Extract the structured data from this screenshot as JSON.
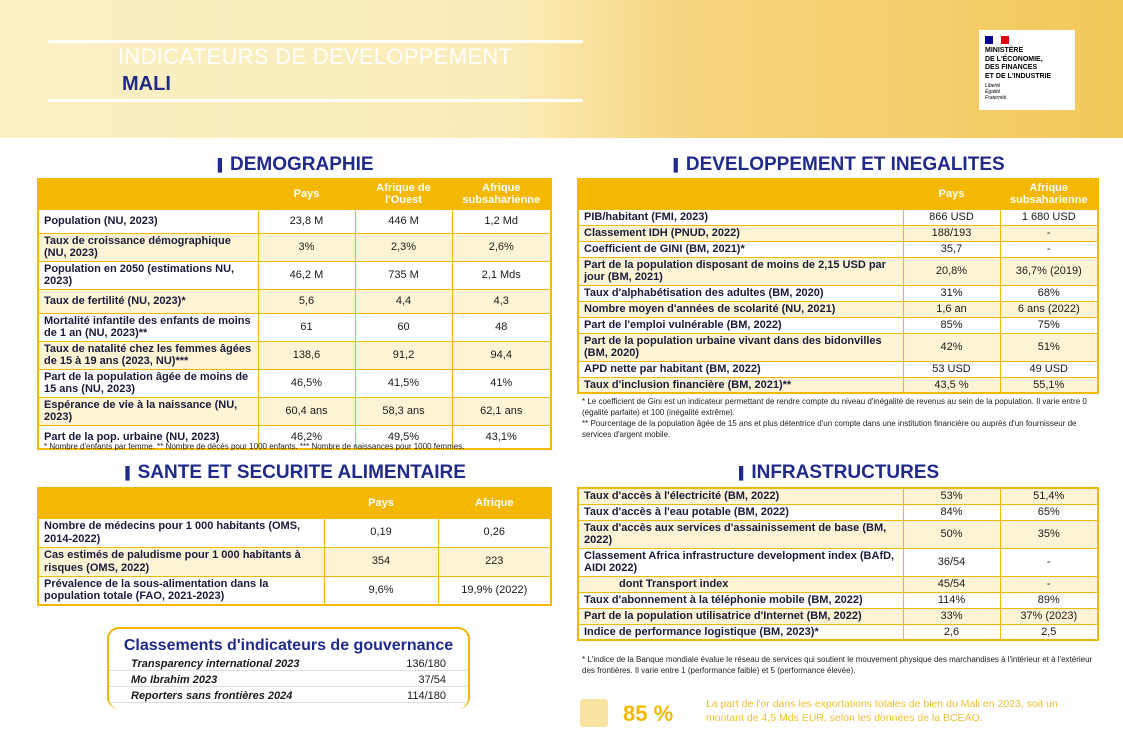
{
  "header": {
    "title": "INDICATEURS DE DEVELOPPEMENT",
    "subtitle": "MALI",
    "logo": {
      "lines": [
        "MINISTÈRE",
        "DE L'ÉCONOMIE,",
        "DES FINANCES",
        "ET DE L'INDUSTRIE"
      ],
      "motto": [
        "Liberté",
        "Égalité",
        "Fraternité"
      ]
    }
  },
  "demographie": {
    "title": "DEMOGRAPHIE",
    "columns": [
      "Pays",
      "Afrique de l'Ouest",
      "Afrique subsaharienne"
    ],
    "rows": [
      [
        "Population (NU, 2023)",
        "23,8 M",
        "446 M",
        "1,2 Md"
      ],
      [
        "Taux de croissance démographique (NU, 2023)",
        "3%",
        "2,3%",
        "2,6%"
      ],
      [
        "Population en 2050 (estimations NU, 2023)",
        "46,2 M",
        "735 M",
        "2,1 Mds"
      ],
      [
        "Taux de fertilité (NU, 2023)*",
        "5,6",
        "4,4",
        "4,3"
      ],
      [
        "Mortalité infantile des enfants de moins de 1 an (NU, 2023)**",
        "61",
        "60",
        "48"
      ],
      [
        "Taux de natalité chez les femmes âgées de 15 à 19 ans (2023, NU)***",
        "138,6",
        "91,2",
        "94,4"
      ],
      [
        "Part de la population âgée de moins de 15 ans (NU, 2023)",
        "46,5%",
        "41,5%",
        "41%"
      ],
      [
        "Espérance de vie à la naissance (NU, 2023)",
        "60,4 ans",
        "58,3 ans",
        "62,1 ans"
      ],
      [
        "Part de la pop. urbaine (NU, 2023)",
        "46,2%",
        "49,5%",
        "43,1%"
      ]
    ],
    "footnotes": [
      "* Nombre d'enfants par femme. ** Nombre de décès pour 1000 enfants. *** Nombre de naissances pour 1000 femmes."
    ]
  },
  "sante": {
    "title": "SANTE ET SECURITE ALIMENTAIRE",
    "columns": [
      "Pays",
      "Afrique"
    ],
    "rows": [
      [
        "Nombre de médecins pour 1 000 habitants (OMS, 2014-2022)",
        "0,19",
        "0,26"
      ],
      [
        "Cas estimés de paludisme pour 1 000 habitants à risques (OMS, 2022)",
        "354",
        "223"
      ],
      [
        "Prévalence de la sous-alimentation dans la population totale (FAO, 2021-2023)",
        "9,6%",
        "19,9% (2022)"
      ]
    ]
  },
  "gouvernance": {
    "title": "Classements d'indicateurs de gouvernance",
    "rows": [
      [
        "Transparency international 2023",
        "136/180"
      ],
      [
        "Mo Ibrahim 2023",
        "37/54"
      ],
      [
        "Reporters sans frontières 2024",
        "114/180"
      ]
    ]
  },
  "developpement": {
    "title": "DEVELOPPEMENT ET INEGALITES",
    "columns": [
      "Pays",
      "Afrique subsaharienne"
    ],
    "rows": [
      [
        "PIB/habitant (FMI, 2023)",
        "866 USD",
        "1 680 USD"
      ],
      [
        "Classement IDH (PNUD, 2022)",
        "188/193",
        "-"
      ],
      [
        "Coefficient de GINI (BM, 2021)*",
        "35,7",
        "-"
      ],
      [
        "Part de la population disposant de moins de 2,15 USD par jour (BM, 2021)",
        "20,8%",
        "36,7% (2019)"
      ],
      [
        "Taux d'alphabétisation des adultes (BM, 2020)",
        "31%",
        "68%"
      ],
      [
        "Nombre moyen d'années de scolarité (NU, 2021)",
        "1,6 an",
        "6 ans (2022)"
      ],
      [
        "Part de l'emploi vulnérable (BM, 2022)",
        "85%",
        "75%"
      ],
      [
        "Part de la population urbaine vivant dans des bidonvilles (BM, 2020)",
        "42%",
        "51%"
      ],
      [
        "APD nette par habitant (BM, 2022)",
        "53 USD",
        "49 USD"
      ],
      [
        "Taux d'inclusion financière (BM, 2021)**",
        "43,5 %",
        "55,1%"
      ]
    ],
    "footnotes": [
      "* Le coefficient de Gini est un indicateur permettant de rendre compte du niveau d'inégalité de revenus au sein de la population. Il varie entre 0 (égalité parfaite) et 100 (inégalité extrême).",
      "** Pourcentage de la population âgée de 15 ans et plus détentrice d'un compte dans une institution financière ou auprès d'un fournisseur de services d'argent mobile."
    ]
  },
  "infrastructures": {
    "title": "INFRASTRUCTURES",
    "rows": [
      [
        "Taux d'accès à l'électricité (BM, 2022)",
        "53%",
        "51,4%"
      ],
      [
        "Taux d'accès à l'eau potable (BM, 2022)",
        "84%",
        "65%"
      ],
      [
        "Taux d'accès aux services d'assainissement de base (BM, 2022)",
        "50%",
        "35%"
      ],
      [
        "Classement Africa infrastructure development index (BAfD, AIDI 2022)",
        "36/54",
        "-"
      ],
      [
        "dont Transport index",
        "45/54",
        "-"
      ],
      [
        "Taux d'abonnement à la téléphonie mobile (BM, 2022)",
        "114%",
        "89%"
      ],
      [
        "Part de la population utilisatrice d'Internet (BM, 2022)",
        "33%",
        "37% (2023)"
      ],
      [
        "Indice de performance logistique (BM, 2023)*",
        "2,6",
        "2,5"
      ]
    ],
    "footnotes": [
      "* L'indice de la Banque mondiale évalue le réseau de services qui soutient le mouvement physique des marchandises à l'intérieur et à l'extérieur des frontières. Il varie entre 1 (performance faible) et 5 (performance élevée)."
    ]
  },
  "highlight": {
    "value": "85 %",
    "text": "La part de l'or dans les exportations totales de bien du Mali en 2023, soit un montant de 4,5 Mds EUR, selon les données de la BCEAO."
  }
}
